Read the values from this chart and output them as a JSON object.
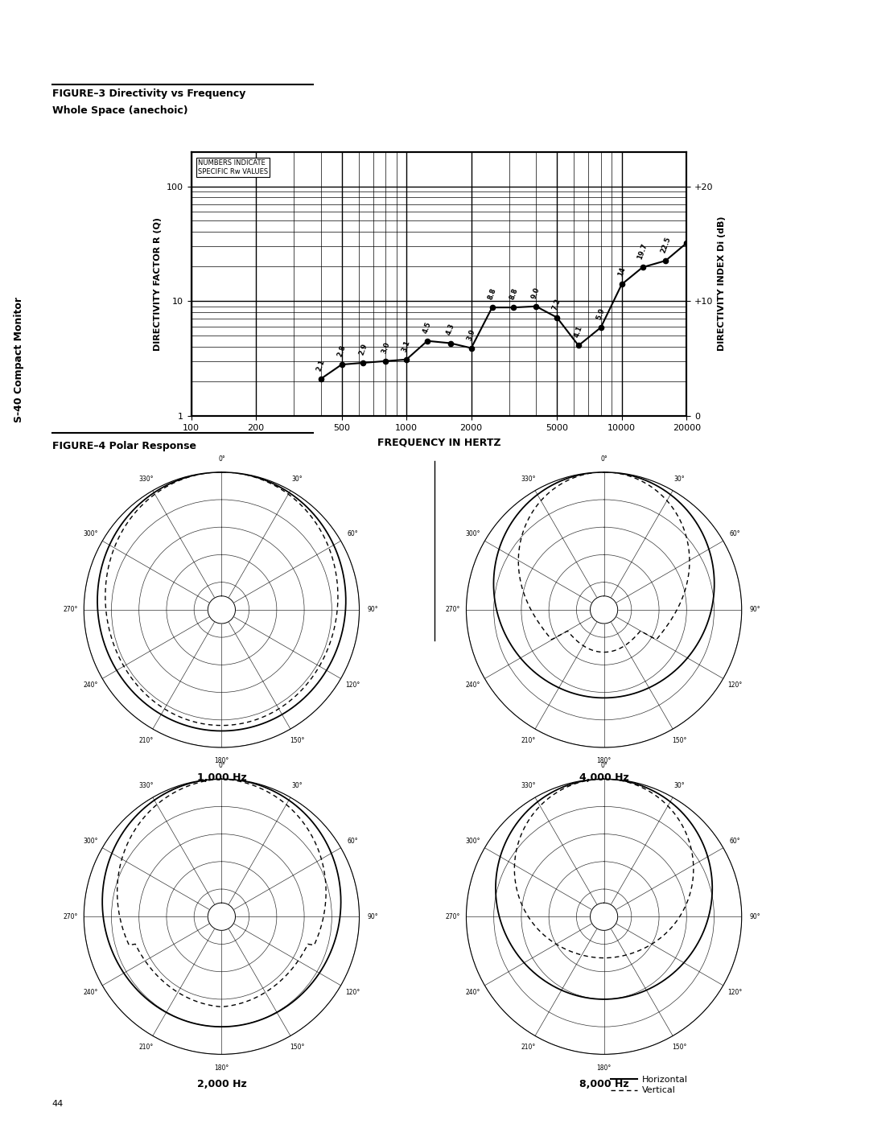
{
  "title": "S-40 Compact Monitor",
  "fig3_title1": "FIGURE–3 Directivity vs Frequency",
  "fig3_title2": "Whole Space (anechoic)",
  "fig4_title": "FIGURE–4 Polar Response",
  "sidebar_text": "S-40 Compact Monitor",
  "note_text": "NUMBERS INDICATE\nSPECIFIC Rw VALUES",
  "ylabel_left": "DIRECTIVITY FACTOR R (Q)",
  "ylabel_right": "DIRECTIVITY INDEX Di (dB)",
  "xlabel": "FREQUENCY IN HERTZ",
  "freq_data": [
    400,
    500,
    630,
    800,
    1000,
    1250,
    1600,
    2000,
    2500,
    3150,
    4000,
    5000,
    6300,
    8000,
    10000,
    12500,
    16000,
    20000
  ],
  "Q_data": [
    2.1,
    2.8,
    2.9,
    3.0,
    3.1,
    4.5,
    4.3,
    3.9,
    8.8,
    8.8,
    9.0,
    7.2,
    4.1,
    5.9,
    14.0,
    19.7,
    22.5,
    32.0
  ],
  "annotations": [
    "2.1",
    "2.8",
    "2.9",
    "3.0",
    "3.1",
    "4.5",
    "4.3",
    "3.9",
    "8.8",
    "8.8",
    "9.0",
    "7.2",
    "4.1",
    "5.9",
    "14",
    "19.7",
    "22.5",
    ""
  ],
  "polar_titles": [
    "1,000 Hz",
    "4,000 Hz",
    "2,000 Hz",
    "8,000 Hz"
  ],
  "legend_labels": [
    "Horizontal",
    "Vertical"
  ],
  "bg_color": "#ffffff",
  "header_bg": "#000000",
  "header_text_color": "#ffffff"
}
